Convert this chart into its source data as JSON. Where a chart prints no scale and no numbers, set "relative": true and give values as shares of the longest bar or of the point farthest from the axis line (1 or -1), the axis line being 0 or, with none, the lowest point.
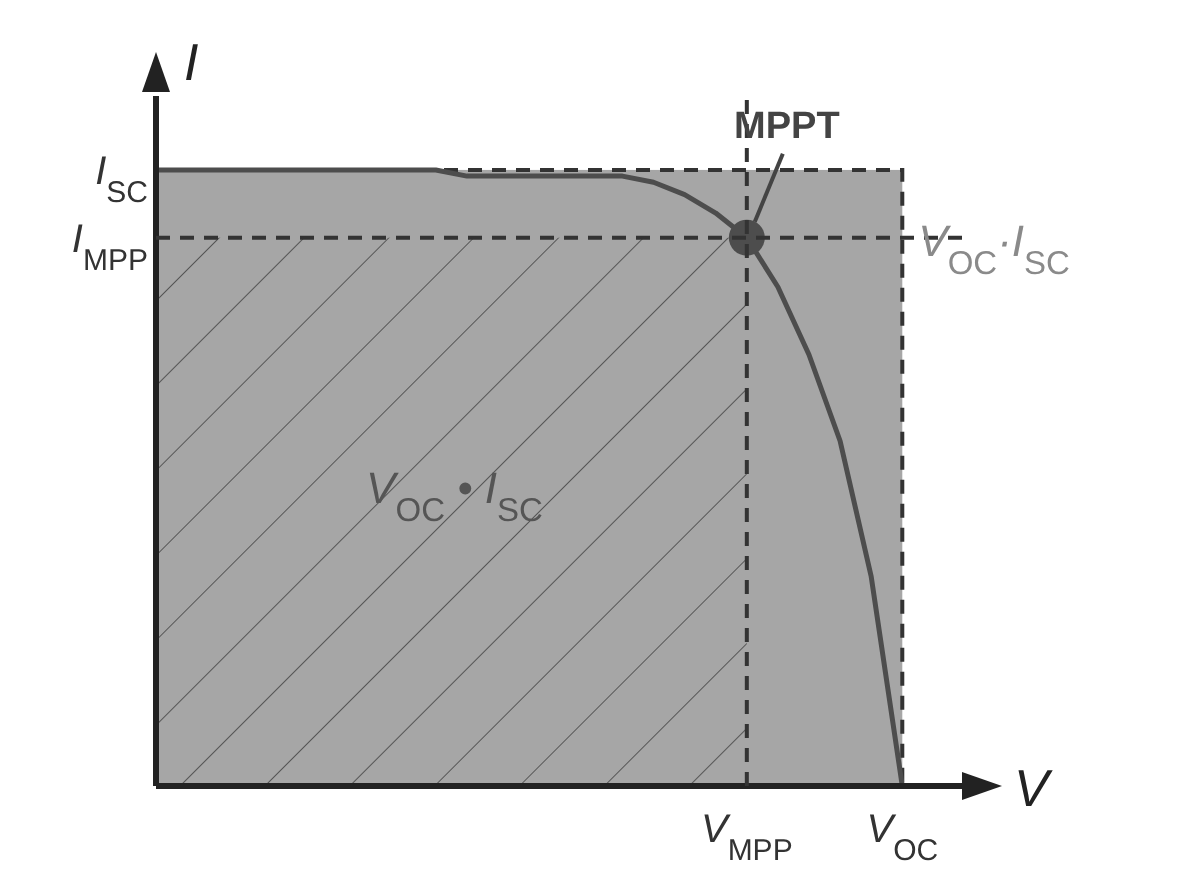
{
  "chart_data": {
    "type": "line",
    "relative": true,
    "xlabel": "V",
    "ylabel": "I",
    "legend": false,
    "grid": false,
    "categories": [
      null,
      null,
      null,
      null,
      null,
      null,
      null,
      null,
      null,
      null,
      null,
      null,
      null,
      null,
      null,
      null,
      null,
      null,
      null,
      "V$_{MPP}$",
      null,
      null,
      null,
      null,
      "V$_{OC}$"
    ],
    "series": [
      {
        "type": "line",
        "color": "#4d4d4d",
        "values": [
          1,
          1,
          1,
          1,
          1,
          1,
          1,
          1,
          1,
          1,
          0.99,
          0.99,
          0.99,
          0.99,
          0.99,
          0.99,
          0.98,
          0.96,
          0.93,
          0.89,
          0.81,
          0.7,
          0.56,
          0.34,
          0
        ]
      },
      {
        "type": "scatter",
        "color": "#4d4d4d",
        "values": [
          null,
          null,
          null,
          null,
          null,
          null,
          null,
          null,
          null,
          null,
          null,
          null,
          null,
          null,
          null,
          null,
          null,
          null,
          null,
          0.89,
          null,
          null,
          null,
          null,
          null
        ]
      }
    ],
    "ref_lines": [
      {
        "axis": "x",
        "value": "V$_{MPP}$",
        "line_style": "dashed",
        "color": "#333333"
      },
      {
        "axis": "y",
        "value": 0.89,
        "label": "I$_{MPP}$",
        "line_style": "dashed",
        "color": "#333333"
      }
    ],
    "annotations": [
      {
        "text": "MPPT",
        "x": "V$_{MPP}$",
        "y": 0.89
      },
      "V$_{OC}$·I$_{SC}$",
      "V$_{OC}$ • I$_{SC}$",
      "I$_{SC}$"
    ]
  }
}
